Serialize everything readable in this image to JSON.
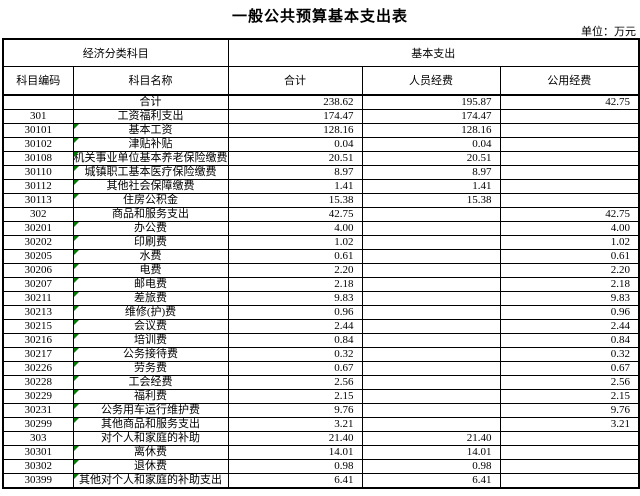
{
  "title": "一般公共预算基本支出表",
  "unit_label": "单位：万元",
  "colors": {
    "border": "#000000",
    "flag_green": "#008000",
    "background": "#ffffff"
  },
  "table": {
    "group_headers": [
      "经济分类科目",
      "基本支出"
    ],
    "columns": [
      "科目编码",
      "科目名称",
      "合计",
      "人员经费",
      "公用经费"
    ],
    "rows": [
      {
        "code": "",
        "name": "合计",
        "total": "238.62",
        "personnel": "195.87",
        "public": "42.75",
        "flag": false
      },
      {
        "code": "301",
        "name": "工资福利支出",
        "total": "174.47",
        "personnel": "174.47",
        "public": "",
        "flag": false
      },
      {
        "code": "30101",
        "name": "基本工资",
        "total": "128.16",
        "personnel": "128.16",
        "public": "",
        "flag": true
      },
      {
        "code": "30102",
        "name": "津贴补贴",
        "total": "0.04",
        "personnel": "0.04",
        "public": "",
        "flag": true
      },
      {
        "code": "30108",
        "name": "机关事业单位基本养老保险缴费",
        "total": "20.51",
        "personnel": "20.51",
        "public": "",
        "flag": true
      },
      {
        "code": "30110",
        "name": "城镇职工基本医疗保险缴费",
        "total": "8.97",
        "personnel": "8.97",
        "public": "",
        "flag": true
      },
      {
        "code": "30112",
        "name": "其他社会保障缴费",
        "total": "1.41",
        "personnel": "1.41",
        "public": "",
        "flag": true
      },
      {
        "code": "30113",
        "name": "住房公积金",
        "total": "15.38",
        "personnel": "15.38",
        "public": "",
        "flag": true
      },
      {
        "code": "302",
        "name": "商品和服务支出",
        "total": "42.75",
        "personnel": "",
        "public": "42.75",
        "flag": false
      },
      {
        "code": "30201",
        "name": "办公费",
        "total": "4.00",
        "personnel": "",
        "public": "4.00",
        "flag": true
      },
      {
        "code": "30202",
        "name": "印刷费",
        "total": "1.02",
        "personnel": "",
        "public": "1.02",
        "flag": true
      },
      {
        "code": "30205",
        "name": "水费",
        "total": "0.61",
        "personnel": "",
        "public": "0.61",
        "flag": true
      },
      {
        "code": "30206",
        "name": "电费",
        "total": "2.20",
        "personnel": "",
        "public": "2.20",
        "flag": true
      },
      {
        "code": "30207",
        "name": "邮电费",
        "total": "2.18",
        "personnel": "",
        "public": "2.18",
        "flag": true
      },
      {
        "code": "30211",
        "name": "差旅费",
        "total": "9.83",
        "personnel": "",
        "public": "9.83",
        "flag": true
      },
      {
        "code": "30213",
        "name": "维修(护)费",
        "total": "0.96",
        "personnel": "",
        "public": "0.96",
        "flag": true
      },
      {
        "code": "30215",
        "name": "会议费",
        "total": "2.44",
        "personnel": "",
        "public": "2.44",
        "flag": true
      },
      {
        "code": "30216",
        "name": "培训费",
        "total": "0.84",
        "personnel": "",
        "public": "0.84",
        "flag": true
      },
      {
        "code": "30217",
        "name": "公务接待费",
        "total": "0.32",
        "personnel": "",
        "public": "0.32",
        "flag": true
      },
      {
        "code": "30226",
        "name": "劳务费",
        "total": "0.67",
        "personnel": "",
        "public": "0.67",
        "flag": true
      },
      {
        "code": "30228",
        "name": "工会经费",
        "total": "2.56",
        "personnel": "",
        "public": "2.56",
        "flag": true
      },
      {
        "code": "30229",
        "name": "福利费",
        "total": "2.15",
        "personnel": "",
        "public": "2.15",
        "flag": true
      },
      {
        "code": "30231",
        "name": "公务用车运行维护费",
        "total": "9.76",
        "personnel": "",
        "public": "9.76",
        "flag": true
      },
      {
        "code": "30299",
        "name": "其他商品和服务支出",
        "total": "3.21",
        "personnel": "",
        "public": "3.21",
        "flag": true
      },
      {
        "code": "303",
        "name": "对个人和家庭的补助",
        "total": "21.40",
        "personnel": "21.40",
        "public": "",
        "flag": false
      },
      {
        "code": "30301",
        "name": "离休费",
        "total": "14.01",
        "personnel": "14.01",
        "public": "",
        "flag": true
      },
      {
        "code": "30302",
        "name": "退休费",
        "total": "0.98",
        "personnel": "0.98",
        "public": "",
        "flag": true
      },
      {
        "code": "30399",
        "name": "其他对个人和家庭的补助支出",
        "total": "6.41",
        "personnel": "6.41",
        "public": "",
        "flag": true
      }
    ]
  }
}
